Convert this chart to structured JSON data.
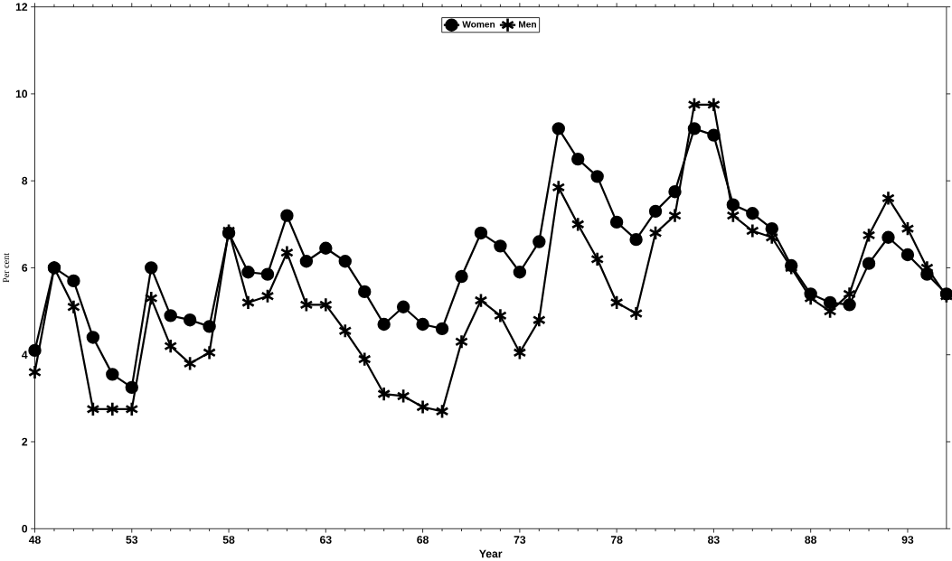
{
  "chart_data": {
    "type": "line",
    "xlabel": "Year",
    "ylabel": "Per cent",
    "x": [
      48,
      49,
      50,
      51,
      52,
      53,
      54,
      55,
      56,
      57,
      58,
      59,
      60,
      61,
      62,
      63,
      64,
      65,
      66,
      67,
      68,
      69,
      70,
      71,
      72,
      73,
      74,
      75,
      76,
      77,
      78,
      79,
      80,
      81,
      82,
      83,
      84,
      85,
      86,
      87,
      88,
      89,
      90,
      91,
      92,
      93,
      94,
      95
    ],
    "series": [
      {
        "name": "Women",
        "color": "#000000",
        "marker": "circle",
        "values": [
          4.1,
          6.0,
          5.7,
          4.4,
          3.55,
          3.25,
          6.0,
          4.9,
          4.8,
          4.65,
          6.8,
          5.9,
          5.85,
          7.2,
          6.15,
          6.45,
          6.15,
          5.45,
          4.7,
          5.1,
          4.7,
          4.6,
          5.8,
          6.8,
          6.5,
          5.9,
          6.6,
          9.2,
          8.5,
          8.1,
          7.05,
          6.65,
          7.3,
          7.75,
          9.2,
          9.05,
          7.45,
          7.25,
          6.9,
          6.05,
          5.4,
          5.2,
          5.15,
          6.1,
          6.7,
          6.3,
          5.85,
          5.4
        ]
      },
      {
        "name": "Men",
        "color": "#000000",
        "marker": "cross",
        "values": [
          3.6,
          6.0,
          5.1,
          2.75,
          2.75,
          2.75,
          5.3,
          4.2,
          3.8,
          4.05,
          6.85,
          5.2,
          5.35,
          6.35,
          5.15,
          5.15,
          4.55,
          3.9,
          3.1,
          3.05,
          2.8,
          2.7,
          4.3,
          5.25,
          4.9,
          4.05,
          4.8,
          7.85,
          7.0,
          6.2,
          5.2,
          4.95,
          6.8,
          7.2,
          9.75,
          9.75,
          7.2,
          6.85,
          6.7,
          6.0,
          5.3,
          5.0,
          5.4,
          6.75,
          7.6,
          6.9,
          6.0,
          5.35
        ]
      }
    ],
    "xlim": [
      48,
      95
    ],
    "xticks": [
      48,
      53,
      58,
      63,
      68,
      73,
      78,
      83,
      88,
      93
    ],
    "ylim": [
      0,
      12
    ],
    "yticks": [
      0,
      2,
      4,
      6,
      8,
      10,
      12
    ],
    "legend": "top",
    "grid": false,
    "line_style": "solid"
  }
}
